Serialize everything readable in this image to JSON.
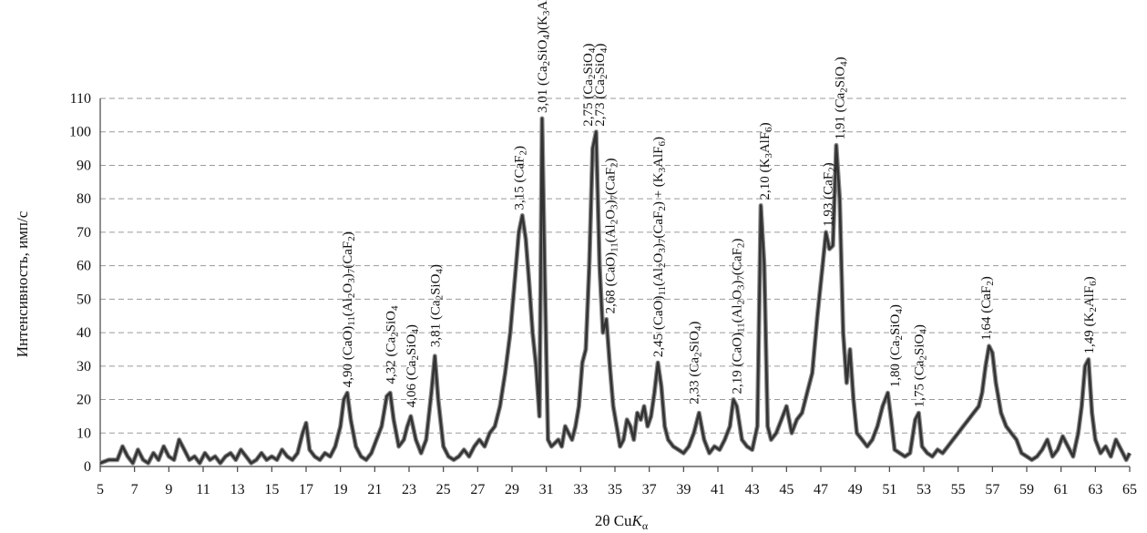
{
  "chart_data": {
    "type": "line",
    "title": "",
    "xlabel": "2θ CuKα",
    "ylabel": "Интенсивность, имп/с",
    "xlim": [
      5,
      65
    ],
    "ylim": [
      0,
      110
    ],
    "x_ticks": [
      "5",
      "7",
      "9",
      "11",
      "13",
      "15",
      "17",
      "19",
      "21",
      "23",
      "25",
      "27",
      "29",
      "31",
      "33",
      "35",
      "37",
      "39",
      "41",
      "43",
      "45",
      "47",
      "49",
      "51",
      "53",
      "55",
      "57",
      "59",
      "61",
      "63",
      "65"
    ],
    "y_ticks": [
      "0",
      "10",
      "20",
      "30",
      "40",
      "50",
      "60",
      "70",
      "80",
      "90",
      "100",
      "110"
    ],
    "grid": "horizontal-dashed",
    "line_color": "#333333",
    "series": [
      {
        "x": [
          5.0,
          5.5,
          6.0,
          6.3,
          6.6,
          6.9,
          7.2,
          7.5,
          7.8,
          8.1,
          8.4,
          8.7,
          9.0,
          9.3,
          9.6,
          9.9,
          10.2,
          10.5,
          10.8,
          11.1,
          11.4,
          11.7,
          12.0,
          12.3,
          12.6,
          12.9,
          13.2,
          13.5,
          13.8,
          14.1,
          14.4,
          14.7,
          15.0,
          15.3,
          15.6,
          15.9,
          16.2,
          16.5,
          16.8,
          17.0,
          17.2,
          17.5,
          17.8,
          18.1,
          18.4,
          18.7,
          19.0,
          19.2,
          19.4,
          19.6,
          19.9,
          20.2,
          20.5,
          20.8,
          21.1,
          21.4,
          21.7,
          21.9,
          22.1,
          22.4,
          22.7,
          22.9,
          23.1,
          23.4,
          23.7,
          24.0,
          24.3,
          24.5,
          24.7,
          25.0,
          25.3,
          25.6,
          25.9,
          26.2,
          26.5,
          26.8,
          27.1,
          27.4,
          27.7,
          28.0,
          28.3,
          28.6,
          28.9,
          29.2,
          29.4,
          29.6,
          29.8,
          30.0,
          30.2,
          30.4,
          30.6,
          30.75,
          30.9,
          31.1,
          31.3,
          31.5,
          31.7,
          31.9,
          32.1,
          32.3,
          32.5,
          32.7,
          32.9,
          33.1,
          33.3,
          33.5,
          33.7,
          33.9,
          34.1,
          34.3,
          34.5,
          34.7,
          34.9,
          35.1,
          35.3,
          35.5,
          35.7,
          35.9,
          36.1,
          36.3,
          36.5,
          36.7,
          36.9,
          37.1,
          37.3,
          37.5,
          37.7,
          37.9,
          38.1,
          38.4,
          38.7,
          39.0,
          39.3,
          39.6,
          39.9,
          40.2,
          40.5,
          40.8,
          41.1,
          41.4,
          41.7,
          41.9,
          42.1,
          42.4,
          42.7,
          43.0,
          43.3,
          43.5,
          43.7,
          43.9,
          44.1,
          44.4,
          44.7,
          45.0,
          45.3,
          45.6,
          45.9,
          46.2,
          46.5,
          46.8,
          47.1,
          47.3,
          47.5,
          47.7,
          47.9,
          48.1,
          48.3,
          48.5,
          48.7,
          48.9,
          49.1,
          49.4,
          49.7,
          50.0,
          50.3,
          50.6,
          50.9,
          51.1,
          51.3,
          51.6,
          51.9,
          52.2,
          52.5,
          52.7,
          52.9,
          53.2,
          53.5,
          53.8,
          54.1,
          54.4,
          54.7,
          55.0,
          55.3,
          55.6,
          55.9,
          56.2,
          56.4,
          56.6,
          56.8,
          57.0,
          57.2,
          57.5,
          57.8,
          58.1,
          58.4,
          58.7,
          59.0,
          59.3,
          59.6,
          59.9,
          60.2,
          60.5,
          60.8,
          61.1,
          61.4,
          61.7,
          62.0,
          62.2,
          62.4,
          62.6,
          62.8,
          63.0,
          63.3,
          63.6,
          63.9,
          64.2,
          64.5,
          64.8,
          65.0
        ],
        "values": [
          1,
          2,
          2,
          6,
          3,
          1,
          5,
          2,
          1,
          4,
          2,
          6,
          3,
          2,
          8,
          5,
          2,
          3,
          1,
          4,
          2,
          3,
          1,
          3,
          4,
          2,
          5,
          3,
          1,
          2,
          4,
          2,
          3,
          2,
          5,
          3,
          2,
          4,
          10,
          13,
          5,
          3,
          2,
          4,
          3,
          6,
          12,
          20,
          22,
          14,
          6,
          3,
          2,
          4,
          8,
          12,
          21,
          22,
          14,
          6,
          8,
          12,
          15,
          8,
          4,
          8,
          22,
          33,
          20,
          6,
          3,
          2,
          3,
          5,
          3,
          6,
          8,
          6,
          10,
          12,
          18,
          28,
          40,
          58,
          70,
          75,
          68,
          55,
          40,
          30,
          15,
          104,
          60,
          8,
          6,
          7,
          8,
          6,
          12,
          10,
          8,
          12,
          18,
          31,
          35,
          60,
          95,
          100,
          60,
          40,
          44,
          30,
          18,
          12,
          6,
          8,
          14,
          12,
          8,
          16,
          14,
          18,
          12,
          15,
          22,
          31,
          24,
          12,
          8,
          6,
          5,
          4,
          6,
          10,
          16,
          8,
          4,
          6,
          5,
          8,
          12,
          20,
          18,
          8,
          6,
          5,
          12,
          78,
          60,
          12,
          8,
          10,
          14,
          18,
          10,
          14,
          16,
          22,
          28,
          45,
          60,
          70,
          65,
          66,
          96,
          80,
          40,
          25,
          35,
          20,
          10,
          8,
          6,
          8,
          12,
          18,
          22,
          14,
          5,
          4,
          3,
          4,
          14,
          16,
          6,
          4,
          3,
          5,
          4,
          6,
          8,
          10,
          12,
          14,
          16,
          18,
          22,
          30,
          36,
          34,
          25,
          16,
          12,
          10,
          8,
          4,
          3,
          2,
          3,
          5,
          8,
          3,
          5,
          9,
          6,
          3,
          10,
          18,
          30,
          32,
          16,
          8,
          4,
          6,
          3,
          8,
          5,
          2,
          4
        ]
      }
    ],
    "annotations": [
      {
        "x": 19.4,
        "y": 22,
        "text": "4,90 (CaO)₁₁(Al₂O₃)₇(CaF₂)"
      },
      {
        "x": 21.9,
        "y": 23,
        "text": "4,32 (Ca₂SiO₄"
      },
      {
        "x": 23.1,
        "y": 16,
        "text": "4,06 (Ca₂SiO₄)"
      },
      {
        "x": 24.5,
        "y": 34,
        "text": "3,81 (Ca₂SiO₄)"
      },
      {
        "x": 29.4,
        "y": 75,
        "text": "3,15 (CaF₂)"
      },
      {
        "x": 30.75,
        "y": 104,
        "text": "3,01 (Ca₂SiO₄)(K₃AlF₆)"
      },
      {
        "x": 33.4,
        "y": 100,
        "text": "2,75 (Ca₂SiO₄)"
      },
      {
        "x": 34.1,
        "y": 100,
        "text": "2,73 (Ca₂SiO₄)"
      },
      {
        "x": 34.7,
        "y": 44,
        "text": "2,68 (CaO)₁₁(Al₂O₃)₇(CaF₂)"
      },
      {
        "x": 37.5,
        "y": 31,
        "text": "2,45 (CaO)₁₁(Al₂O₃)₇(CaF₂) + (K₃AlF₆)"
      },
      {
        "x": 39.6,
        "y": 17,
        "text": "2,33 (Ca₂SiO₄)"
      },
      {
        "x": 42.1,
        "y": 20,
        "text": "2,19 (CaO)₁₁(Al₂O₃)₇(CaF₂)"
      },
      {
        "x": 43.7,
        "y": 78,
        "text": "2,10 (K₃AlF₆)"
      },
      {
        "x": 47.4,
        "y": 70,
        "text": "1,93 (CaF₂)"
      },
      {
        "x": 48.1,
        "y": 96,
        "text": "1,91 (Ca₂SiO₄)"
      },
      {
        "x": 51.3,
        "y": 22,
        "text": "1,80 (Ca₂SiO₄)"
      },
      {
        "x": 52.7,
        "y": 16,
        "text": "1,75 (Ca₂SiO₄)"
      },
      {
        "x": 56.6,
        "y": 36,
        "text": "1,64 (CaF₂)"
      },
      {
        "x": 62.6,
        "y": 32,
        "text": "1,49 (K₂AlF₆)"
      }
    ]
  }
}
